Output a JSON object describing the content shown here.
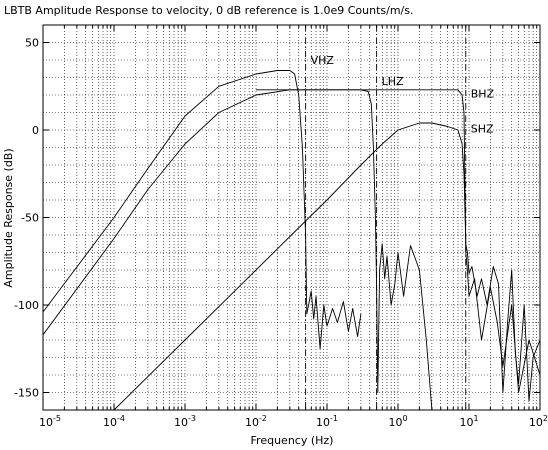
{
  "chart_data": {
    "type": "line",
    "title": "LBTB Amplitude Response to velocity, 0 dB reference is 1.0e9 Counts/m/s.",
    "xlabel": "Frequency (Hz)",
    "ylabel": "Amplitude Response (dB)",
    "xscale": "log",
    "xlim": [
      1e-05,
      100
    ],
    "ylim": [
      -160,
      60
    ],
    "x_tick_labels": [
      {
        "value": 1e-05,
        "base": "10",
        "exp": "-5"
      },
      {
        "value": 0.0001,
        "base": "10",
        "exp": "-4"
      },
      {
        "value": 0.001,
        "base": "10",
        "exp": "-3"
      },
      {
        "value": 0.01,
        "base": "10",
        "exp": "-2"
      },
      {
        "value": 0.1,
        "base": "10",
        "exp": "-1"
      },
      {
        "value": 1,
        "base": "10",
        "exp": "0"
      },
      {
        "value": 10,
        "base": "10",
        "exp": "1"
      },
      {
        "value": 100,
        "base": "10",
        "exp": "2"
      }
    ],
    "y_ticks": [
      50,
      0,
      -50,
      -100,
      -150
    ],
    "y_tick_labels": [
      "50",
      "0",
      "-50",
      "-100",
      "-150"
    ],
    "grid": true,
    "vertical_markers": [
      0.05,
      0.5,
      9
    ],
    "series": [
      {
        "name": "VHZ",
        "x": [
          1e-05,
          0.0001,
          0.0003,
          0.001,
          0.003,
          0.01,
          0.02,
          0.03,
          0.035,
          0.04,
          0.045,
          0.05,
          0.052,
          0.055,
          0.06,
          0.065,
          0.07,
          0.08,
          0.09,
          0.1,
          0.12,
          0.14,
          0.17,
          0.2,
          0.23,
          0.27,
          0.3
        ],
        "y": [
          -104,
          -50,
          -22,
          8,
          25,
          32,
          34,
          34,
          32,
          20,
          -10,
          -60,
          -105,
          -100,
          -92,
          -108,
          -95,
          -125,
          -100,
          -112,
          -102,
          -110,
          -98,
          -115,
          -102,
          -118,
          -105
        ]
      },
      {
        "name": "LHZ",
        "x": [
          1e-05,
          0.0001,
          0.0003,
          0.001,
          0.003,
          0.01,
          0.03,
          0.1,
          0.3,
          0.38,
          0.42,
          0.45,
          0.48,
          0.5,
          0.52,
          0.55,
          0.6,
          0.65,
          0.7,
          0.8,
          0.9,
          1,
          1.2,
          1.5,
          2,
          2.5,
          3
        ],
        "y": [
          -117,
          -62,
          -34,
          -8,
          10,
          20,
          23,
          23,
          23,
          22,
          15,
          -10,
          -50,
          -90,
          -150,
          -80,
          -65,
          -85,
          -72,
          -100,
          -88,
          -70,
          -95,
          -66,
          -80,
          -120,
          -160
        ]
      },
      {
        "name": "BHZ",
        "x": [
          0.0001,
          0.001,
          0.01,
          0.05,
          0.1,
          0.3,
          0.6,
          1,
          2,
          3,
          5,
          7,
          8,
          8.5,
          9,
          9.5,
          10,
          11,
          13,
          15,
          18,
          22,
          26,
          30,
          35,
          40,
          45,
          50,
          60,
          70,
          80,
          100
        ],
        "y": [
          -160,
          -120,
          -80,
          -52,
          -40,
          -20,
          -8,
          0,
          4,
          4,
          2,
          0,
          -8,
          -25,
          -65,
          -70,
          -82,
          -78,
          -95,
          -85,
          -100,
          -78,
          -88,
          -150,
          -110,
          -80,
          -128,
          -145,
          -100,
          -155,
          -130,
          -120
        ]
      },
      {
        "name": "SHZ",
        "x": [
          0.01,
          0.03,
          0.05,
          0.1,
          0.3,
          1,
          3,
          7,
          8,
          8.5,
          9,
          9.5,
          10,
          12,
          15,
          20,
          25,
          30,
          40,
          50,
          70,
          100
        ],
        "y": [
          23,
          23,
          23,
          23,
          23,
          23,
          23,
          23,
          20,
          10,
          -70,
          -80,
          -95,
          -85,
          -120,
          -90,
          -110,
          -135,
          -100,
          -150,
          -120,
          -140
        ]
      }
    ],
    "series_label_positions": [
      {
        "name": "VHZ",
        "x": 0.05,
        "y": 40
      },
      {
        "name": "LHZ",
        "x": 0.5,
        "y": 28
      },
      {
        "name": "BHZ",
        "x": 9,
        "y": 21
      },
      {
        "name": "SHZ",
        "x": 9,
        "y": 1
      }
    ]
  }
}
